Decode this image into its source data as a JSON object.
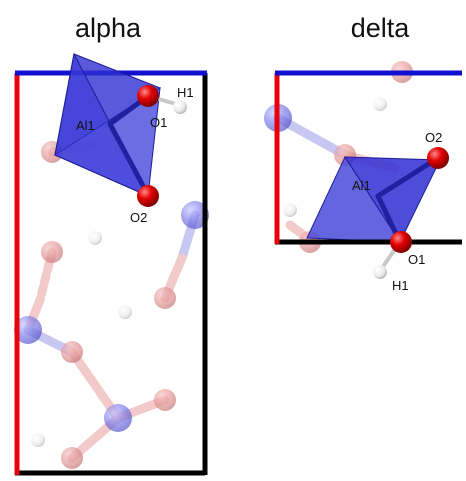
{
  "panels": {
    "alpha": {
      "title": "alpha",
      "labels": {
        "al": "Al1",
        "o1": "O1",
        "o2": "O2",
        "h": "H1"
      }
    },
    "delta": {
      "title": "delta",
      "labels": {
        "al": "Al1",
        "o1": "O1",
        "o2": "O2",
        "h": "H1"
      }
    }
  },
  "colors": {
    "axis_a": "#e8000b",
    "axis_b": "#1010d0",
    "axis_c": "#000000",
    "aluminum": "#6a6ae6",
    "oxygen": "#e00000",
    "hydrogen": "#f2f2f2",
    "polyhedron": "#3838d8"
  }
}
